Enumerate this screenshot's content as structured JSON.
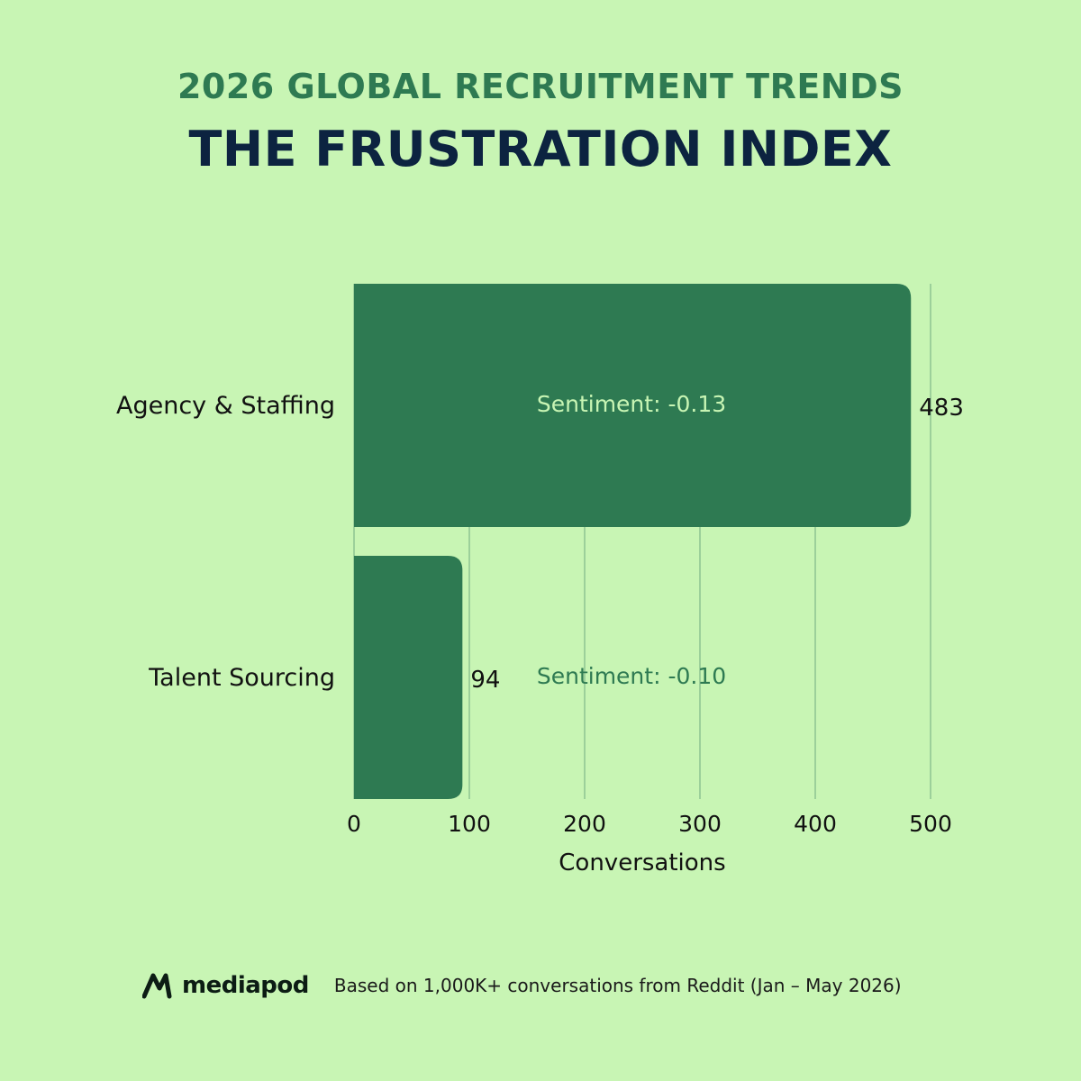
{
  "header": {
    "supertitle": "2026 GLOBAL RECRUITMENT TRENDS",
    "title": "THE FRUSTRATION INDEX"
  },
  "chart_data": {
    "type": "bar",
    "orientation": "horizontal",
    "categories": [
      "Agency & Staffing",
      "Talent Sourcing"
    ],
    "values": [
      483,
      94
    ],
    "value_labels": [
      "483",
      "94"
    ],
    "annotations": [
      "Sentiment: -0.13",
      "Sentiment: -0.10"
    ],
    "xlabel": "Conversations",
    "xlim": [
      0,
      500
    ],
    "xticks": [
      0,
      100,
      200,
      300,
      400,
      500
    ],
    "grid": "vertical",
    "bar_color": "#2e7a52",
    "annotation_color_inside": "#c8f5b4",
    "annotation_color_outside": "#2e7a52"
  },
  "footer": {
    "logo_text": "mediapod",
    "logo_icon": "mediapod-logo-icon",
    "note": "Based on 1,000K+ conversations from Reddit (Jan – May 2026)"
  },
  "colors": {
    "background": "#c8f5b4",
    "accent": "#2e7a52",
    "title": "#0c2340"
  }
}
